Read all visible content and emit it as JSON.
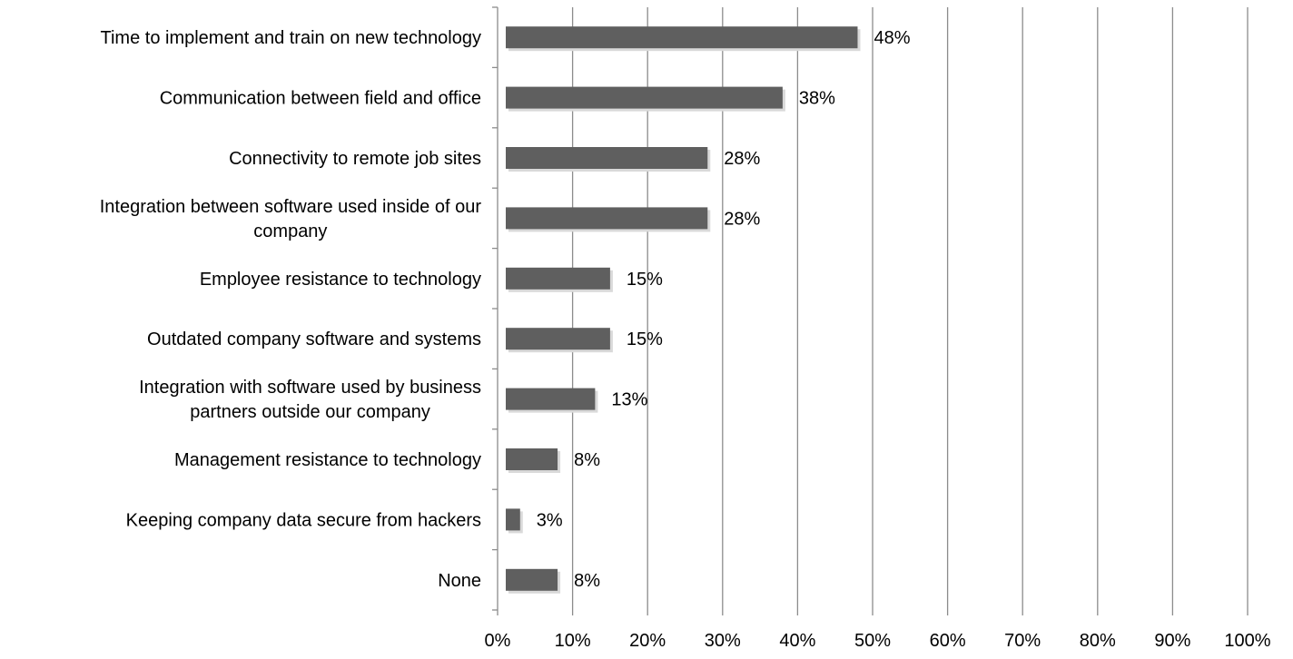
{
  "chart_data": {
    "type": "bar",
    "orientation": "horizontal",
    "categories": [
      [
        "Time to implement and train on new technology"
      ],
      [
        "Communication between field and office"
      ],
      [
        "Connectivity to remote job sites"
      ],
      [
        "Integration between software used inside of our",
        "company"
      ],
      [
        "Employee resistance to technology"
      ],
      [
        "Outdated company software and systems"
      ],
      [
        "Integration with software used by business",
        "partners outside our company"
      ],
      [
        "Management resistance to technology"
      ],
      [
        "Keeping company data secure from hackers"
      ],
      [
        "None"
      ]
    ],
    "values": [
      48,
      38,
      28,
      28,
      15,
      15,
      13,
      8,
      3,
      8
    ],
    "value_labels": [
      "48%",
      "38%",
      "28%",
      "28%",
      "15%",
      "15%",
      "13%",
      "8%",
      "3%",
      "8%"
    ],
    "xlim": [
      0,
      100
    ],
    "xticks": [
      0,
      10,
      20,
      30,
      40,
      50,
      60,
      70,
      80,
      90,
      100
    ],
    "xtick_labels": [
      "0%",
      "10%",
      "20%",
      "30%",
      "40%",
      "50%",
      "60%",
      "70%",
      "80%",
      "90%",
      "100%"
    ],
    "grid": "vertical",
    "legend": "none",
    "colors": {
      "bar": "#5f5f5f",
      "bar_shadow": "#d9d9d9",
      "grid": "#8c8c8c",
      "axis": "#8c8c8c"
    }
  }
}
